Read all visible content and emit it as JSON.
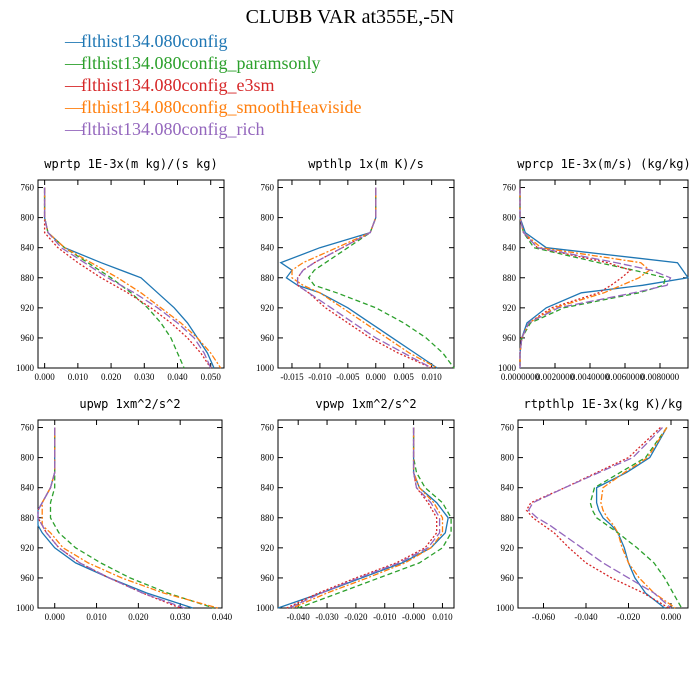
{
  "title": "CLUBB VAR at355E,-5N",
  "legend": [
    {
      "name": "flthist134.080config",
      "color": "#1f77b4",
      "dash": "solid"
    },
    {
      "name": "flthist134.080config_paramsonly",
      "color": "#2ca02c",
      "dash": "dash"
    },
    {
      "name": "flthist134.080config_e3sm",
      "color": "#d62728",
      "dash": "dot"
    },
    {
      "name": "flthist134.080config_smoothHeaviside",
      "color": "#ff7f0e",
      "dash": "dashdot"
    },
    {
      "name": "flthist134.080config_rich",
      "color": "#9467bd",
      "dash": "longdash"
    }
  ],
  "chart_data": [
    {
      "type": "line",
      "title": "wprtp  1E-3x(m kg)/(s kg)",
      "xlim": [
        -0.002,
        0.054
      ],
      "xticks": [
        0.0,
        0.01,
        0.02,
        0.03,
        0.04,
        0.05
      ],
      "xtick_labels": [
        "0.000",
        "0.010",
        "0.020",
        "0.030",
        "0.040",
        "0.050"
      ],
      "ylim": [
        1000,
        750
      ],
      "yticks": [
        760,
        800,
        840,
        880,
        920,
        960,
        1000
      ],
      "levels": [
        760,
        800,
        820,
        840,
        860,
        880,
        900,
        920,
        940,
        960,
        980,
        1000
      ],
      "series": [
        {
          "name": "flthist134.080config",
          "values": [
            0.0,
            0.0,
            0.001,
            0.006,
            0.017,
            0.029,
            0.034,
            0.039,
            0.043,
            0.046,
            0.049,
            0.051
          ]
        },
        {
          "name": "flthist134.080config_paramsonly",
          "values": [
            0.0,
            0.0,
            0.001,
            0.006,
            0.013,
            0.02,
            0.026,
            0.031,
            0.035,
            0.038,
            0.04,
            0.042
          ]
        },
        {
          "name": "flthist134.080config_e3sm",
          "values": [
            0.0,
            0.0,
            0.0,
            0.004,
            0.01,
            0.017,
            0.025,
            0.032,
            0.038,
            0.043,
            0.047,
            0.05
          ]
        },
        {
          "name": "flthist134.080config_smoothHeaviside",
          "values": [
            0.0,
            0.0,
            0.001,
            0.006,
            0.014,
            0.022,
            0.029,
            0.035,
            0.041,
            0.046,
            0.05,
            0.053
          ]
        },
        {
          "name": "flthist134.080config_rich",
          "values": [
            0.0,
            0.0,
            0.001,
            0.005,
            0.012,
            0.019,
            0.027,
            0.034,
            0.04,
            0.045,
            0.048,
            0.05
          ]
        }
      ]
    },
    {
      "type": "line",
      "title": "wpthlp  1x(m K)/s",
      "xlim": [
        -0.0175,
        0.014
      ],
      "xticks": [
        -0.015,
        -0.01,
        -0.005,
        0.0,
        0.005,
        0.01
      ],
      "xtick_labels": [
        "-0.015",
        "-0.010",
        "-0.005",
        "0.000",
        "0.005",
        "0.010"
      ],
      "ylim": [
        1000,
        750
      ],
      "yticks": [
        760,
        800,
        840,
        880,
        920,
        960,
        1000
      ],
      "levels": [
        760,
        800,
        820,
        840,
        860,
        870,
        880,
        890,
        900,
        920,
        940,
        960,
        980,
        1000
      ],
      "series": [
        {
          "name": "flthist134.080config",
          "values": [
            0.0,
            0.0,
            -0.001,
            -0.01,
            -0.017,
            -0.015,
            -0.016,
            -0.014,
            -0.01,
            -0.005,
            -0.001,
            0.003,
            0.007,
            0.011
          ]
        },
        {
          "name": "flthist134.080config_paramsonly",
          "values": [
            0.0,
            0.0,
            -0.001,
            -0.005,
            -0.009,
            -0.011,
            -0.012,
            -0.011,
            -0.007,
            0.0,
            0.005,
            0.009,
            0.012,
            0.014
          ]
        },
        {
          "name": "flthist134.080config_e3sm",
          "values": [
            0.0,
            0.0,
            -0.001,
            -0.006,
            -0.011,
            -0.013,
            -0.014,
            -0.014,
            -0.012,
            -0.009,
            -0.005,
            -0.001,
            0.004,
            0.01
          ]
        },
        {
          "name": "flthist134.080config_smoothHeaviside",
          "values": [
            0.0,
            0.0,
            -0.001,
            -0.007,
            -0.013,
            -0.015,
            -0.015,
            -0.013,
            -0.01,
            -0.006,
            -0.002,
            0.002,
            0.006,
            0.011
          ]
        },
        {
          "name": "flthist134.080config_rich",
          "values": [
            0.0,
            0.0,
            -0.001,
            -0.006,
            -0.011,
            -0.013,
            -0.014,
            -0.014,
            -0.012,
            -0.008,
            -0.004,
            0.0,
            0.005,
            0.01
          ]
        }
      ]
    },
    {
      "type": "line",
      "title": "wprcp  1E-3x(m/s) (kg/kg)",
      "xlim": [
        0.0,
        0.0096
      ],
      "xticks": [
        0.0,
        0.002,
        0.004,
        0.006,
        0.008
      ],
      "xtick_labels": [
        "0.0000000",
        "0.0020000",
        "0.0040000",
        "0.0060000",
        "0.0080000"
      ],
      "ylim": [
        1000,
        750
      ],
      "yticks": [
        760,
        800,
        840,
        880,
        920,
        960,
        1000
      ],
      "levels": [
        760,
        800,
        820,
        840,
        860,
        870,
        880,
        890,
        900,
        920,
        940,
        960,
        980,
        1000
      ],
      "series": [
        {
          "name": "flthist134.080config",
          "values": [
            0.0,
            0.0,
            0.0003,
            0.0015,
            0.009,
            0.0093,
            0.0096,
            0.007,
            0.0035,
            0.0015,
            0.0004,
            0.0001,
            0.0,
            0.0
          ]
        },
        {
          "name": "flthist134.080config_paramsonly",
          "values": [
            0.0,
            0.0,
            0.0002,
            0.0008,
            0.0045,
            0.0065,
            0.0083,
            0.0082,
            0.0068,
            0.0025,
            0.0006,
            0.0001,
            0.0,
            0.0
          ]
        },
        {
          "name": "flthist134.080config_e3sm",
          "values": [
            0.0,
            0.0,
            0.0002,
            0.001,
            0.005,
            0.0063,
            0.0058,
            0.0052,
            0.0045,
            0.0018,
            0.0005,
            0.0001,
            0.0,
            0.0
          ]
        },
        {
          "name": "flthist134.080config_smoothHeaviside",
          "values": [
            0.0,
            0.0,
            0.0002,
            0.0012,
            0.0069,
            0.0074,
            0.0068,
            0.0058,
            0.0048,
            0.002,
            0.0005,
            0.0001,
            0.0,
            0.0
          ]
        },
        {
          "name": "flthist134.080config_rich",
          "values": [
            0.0,
            0.0,
            0.0002,
            0.001,
            0.0055,
            0.0075,
            0.0086,
            0.0084,
            0.0065,
            0.0022,
            0.0005,
            0.0001,
            0.0,
            0.0
          ]
        }
      ]
    },
    {
      "type": "line",
      "title": "upwp  1xm^2/s^2",
      "xlim": [
        -0.004,
        0.04
      ],
      "xticks": [
        0.0,
        0.01,
        0.02,
        0.03,
        0.04
      ],
      "xtick_labels": [
        "0.000",
        "0.010",
        "0.020",
        "0.030",
        "0.040"
      ],
      "ylim": [
        1000,
        750
      ],
      "yticks": [
        760,
        800,
        840,
        880,
        920,
        960,
        1000
      ],
      "levels": [
        760,
        800,
        820,
        840,
        860,
        870,
        880,
        890,
        900,
        920,
        940,
        960,
        980,
        1000
      ],
      "series": [
        {
          "name": "flthist134.080config",
          "values": [
            0.0,
            0.0,
            0.0,
            -0.001,
            -0.003,
            -0.004,
            -0.004,
            -0.004,
            -0.003,
            0.0,
            0.005,
            0.013,
            0.022,
            0.033
          ]
        },
        {
          "name": "flthist134.080config_paramsonly",
          "values": [
            0.0,
            0.0,
            0.0,
            0.0,
            -0.001,
            -0.001,
            -0.001,
            0.0,
            0.001,
            0.005,
            0.011,
            0.018,
            0.027,
            0.038
          ]
        },
        {
          "name": "flthist134.080config_e3sm",
          "values": [
            0.0,
            0.0,
            0.0,
            -0.001,
            -0.003,
            -0.004,
            -0.004,
            -0.003,
            -0.002,
            0.001,
            0.006,
            0.013,
            0.021,
            0.03
          ]
        },
        {
          "name": "flthist134.080config_smoothHeaviside",
          "values": [
            0.0,
            0.0,
            0.0,
            -0.001,
            -0.003,
            -0.003,
            -0.003,
            -0.003,
            -0.001,
            0.002,
            0.008,
            0.016,
            0.026,
            0.039
          ]
        },
        {
          "name": "flthist134.080config_rich",
          "values": [
            0.0,
            0.0,
            0.0,
            -0.001,
            -0.003,
            -0.004,
            -0.004,
            -0.003,
            -0.002,
            0.001,
            0.006,
            0.013,
            0.021,
            0.031
          ]
        }
      ]
    },
    {
      "type": "line",
      "title": "vpwp  1xm^2/s^2",
      "xlim": [
        -0.047,
        0.014
      ],
      "xticks": [
        -0.04,
        -0.03,
        -0.02,
        -0.01,
        0.0,
        0.01
      ],
      "xtick_labels": [
        "-0.040",
        "-0.030",
        "-0.020",
        "-0.010",
        "-0.000",
        "0.010"
      ],
      "ylim": [
        1000,
        750
      ],
      "yticks": [
        760,
        800,
        840,
        880,
        920,
        960,
        1000
      ],
      "levels": [
        760,
        800,
        820,
        840,
        860,
        880,
        900,
        920,
        940,
        960,
        980,
        1000
      ],
      "series": [
        {
          "name": "flthist134.080config",
          "values": [
            0.0,
            0.0,
            0.0,
            0.002,
            0.008,
            0.012,
            0.011,
            0.006,
            -0.004,
            -0.018,
            -0.032,
            -0.047
          ]
        },
        {
          "name": "flthist134.080config_paramsonly",
          "values": [
            0.0,
            0.0,
            0.001,
            0.004,
            0.01,
            0.013,
            0.013,
            0.01,
            0.002,
            -0.012,
            -0.026,
            -0.04
          ]
        },
        {
          "name": "flthist134.080config_e3sm",
          "values": [
            0.0,
            0.0,
            0.0,
            0.001,
            0.005,
            0.008,
            0.008,
            0.004,
            -0.006,
            -0.02,
            -0.033,
            -0.044
          ]
        },
        {
          "name": "flthist134.080config_smoothHeaviside",
          "values": [
            0.0,
            0.0,
            0.0,
            0.002,
            0.007,
            0.01,
            0.01,
            0.006,
            -0.003,
            -0.016,
            -0.03,
            -0.042
          ]
        },
        {
          "name": "flthist134.080config_rich",
          "values": [
            0.0,
            0.0,
            0.0,
            0.001,
            0.006,
            0.009,
            0.009,
            0.005,
            -0.005,
            -0.019,
            -0.032,
            -0.043
          ]
        }
      ]
    },
    {
      "type": "line",
      "title": "rtpthlp  1E-3x(kg K)/kg",
      "xlim": [
        -0.072,
        0.008
      ],
      "xticks": [
        -0.06,
        -0.04,
        -0.02,
        0.0
      ],
      "xtick_labels": [
        "-0.060",
        "-0.040",
        "-0.020",
        "0.000"
      ],
      "ylim": [
        1000,
        750
      ],
      "yticks": [
        760,
        800,
        840,
        880,
        920,
        960,
        1000
      ],
      "levels": [
        760,
        800,
        820,
        840,
        860,
        870,
        880,
        890,
        900,
        920,
        940,
        960,
        980,
        1000
      ],
      "series": [
        {
          "name": "flthist134.080config",
          "values": [
            -0.002,
            -0.01,
            -0.021,
            -0.035,
            -0.035,
            -0.034,
            -0.032,
            -0.028,
            -0.025,
            -0.022,
            -0.02,
            -0.017,
            -0.012,
            -0.003
          ]
        },
        {
          "name": "flthist134.080config_paramsonly",
          "values": [
            -0.002,
            -0.012,
            -0.024,
            -0.036,
            -0.038,
            -0.037,
            -0.035,
            -0.03,
            -0.025,
            -0.016,
            -0.008,
            -0.003,
            0.001,
            0.005
          ]
        },
        {
          "name": "flthist134.080config_e3sm",
          "values": [
            -0.005,
            -0.02,
            -0.035,
            -0.05,
            -0.066,
            -0.068,
            -0.065,
            -0.06,
            -0.055,
            -0.048,
            -0.04,
            -0.028,
            -0.013,
            -0.001
          ]
        },
        {
          "name": "flthist134.080config_smoothHeaviside",
          "values": [
            -0.002,
            -0.011,
            -0.022,
            -0.032,
            -0.033,
            -0.032,
            -0.03,
            -0.027,
            -0.025,
            -0.023,
            -0.02,
            -0.015,
            -0.008,
            0.002
          ]
        },
        {
          "name": "flthist134.080config_rich",
          "values": [
            -0.004,
            -0.018,
            -0.034,
            -0.05,
            -0.065,
            -0.067,
            -0.063,
            -0.057,
            -0.052,
            -0.042,
            -0.032,
            -0.02,
            -0.008,
            0.0
          ]
        }
      ]
    }
  ]
}
